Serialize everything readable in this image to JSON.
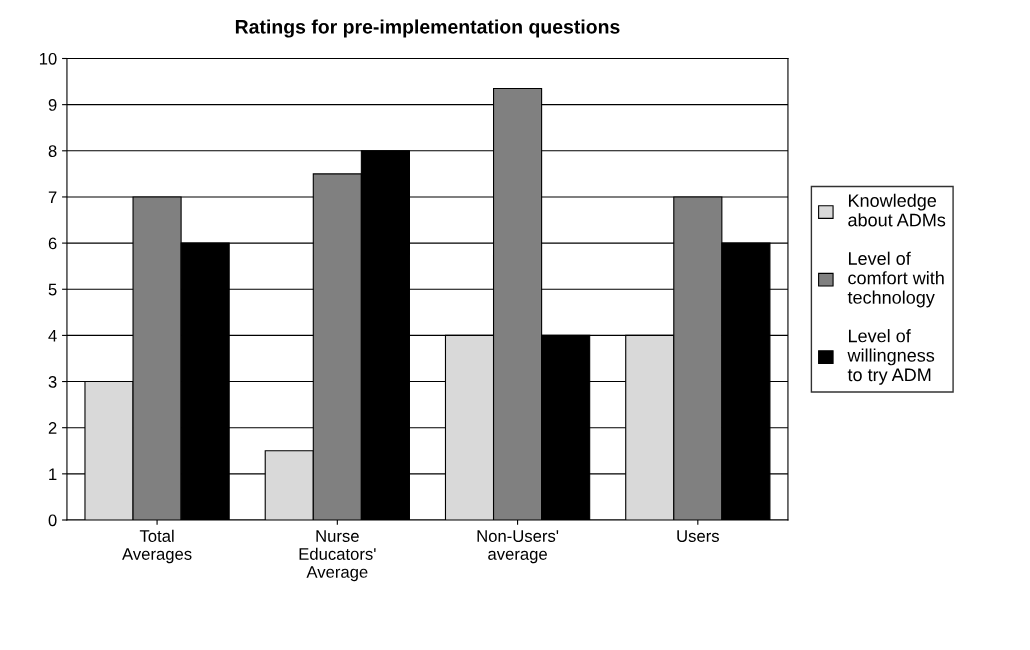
{
  "chart_data": {
    "type": "bar",
    "title": "Ratings for pre-implementation questions",
    "categories": [
      "Total\nAverages",
      "Nurse\nEducators'\nAverage",
      "Non-Users'\naverage",
      "Users"
    ],
    "series": [
      {
        "name": "Knowledge\nabout ADMs",
        "color": "#d9d9d9",
        "values": [
          3,
          1.5,
          4,
          4
        ]
      },
      {
        "name": "Level of\ncomfort with\ntechnology",
        "color": "#808080",
        "values": [
          7,
          7.5,
          9.35,
          7
        ]
      },
      {
        "name": "Level of\nwillingness\nto try ADM",
        "color": "#000000",
        "values": [
          6,
          8,
          4,
          6
        ]
      }
    ],
    "ylim": [
      0,
      10
    ],
    "yticks": [
      0,
      1,
      2,
      3,
      4,
      5,
      6,
      7,
      8,
      9,
      10
    ],
    "grid": "y",
    "legend": "right"
  }
}
